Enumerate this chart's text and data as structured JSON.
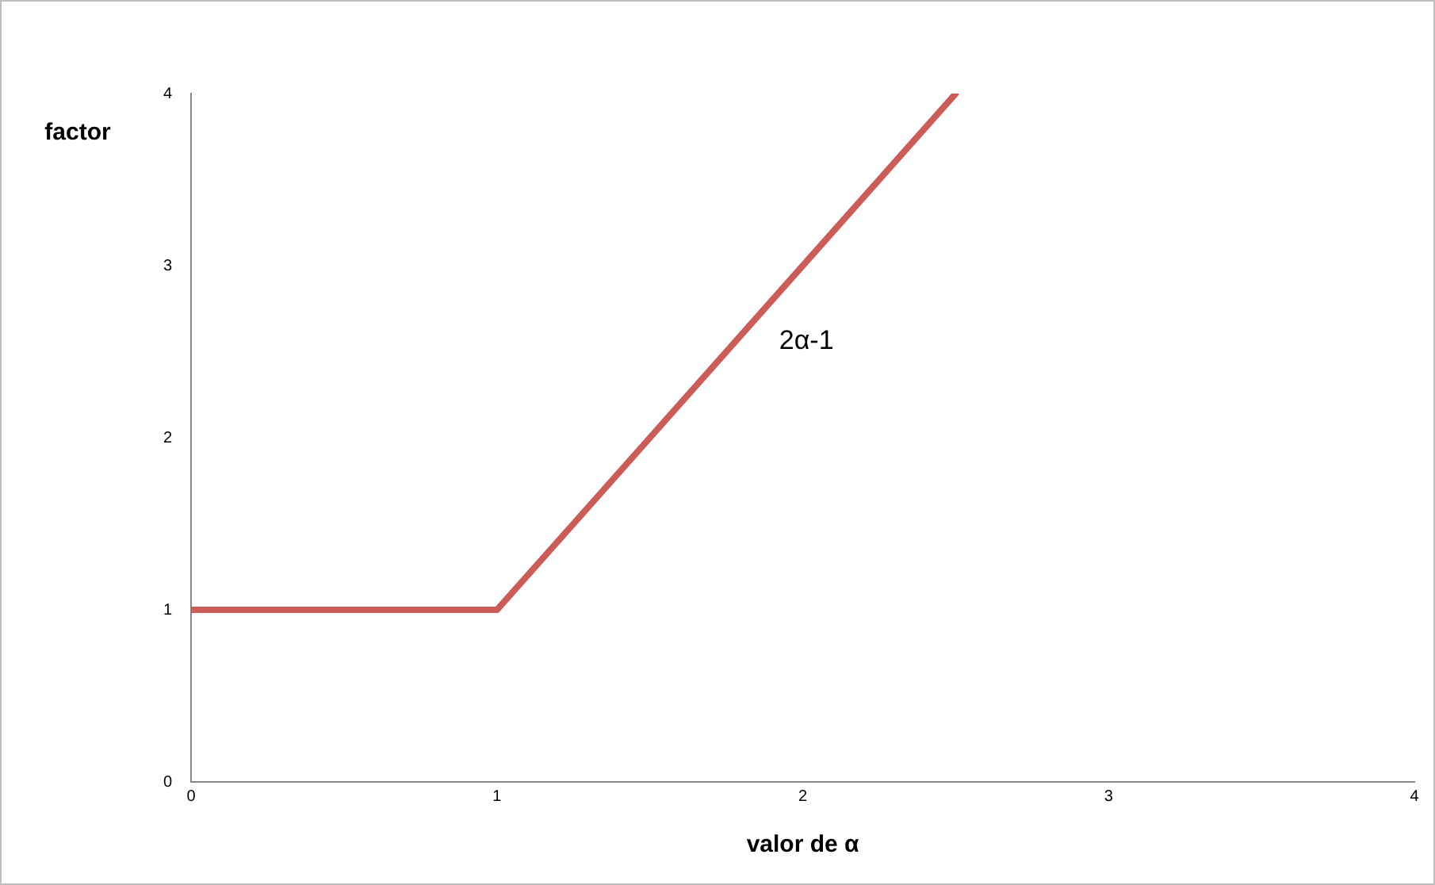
{
  "chart_data": {
    "type": "line",
    "xlabel": "valor de α",
    "ylabel": "factor",
    "x": [
      0,
      1,
      2.5
    ],
    "series": [
      {
        "color": "#cc5c57",
        "values": [
          1,
          1,
          4
        ]
      }
    ],
    "xlim": [
      0,
      4
    ],
    "xticks": [
      0,
      1,
      2,
      3,
      4
    ],
    "ylim": [
      0,
      4
    ],
    "yticks": [
      0,
      1,
      2,
      3,
      4
    ],
    "annotations": [
      "2α-1"
    ],
    "grid": false,
    "legend": false,
    "marker": "none",
    "line_style": "solid"
  }
}
